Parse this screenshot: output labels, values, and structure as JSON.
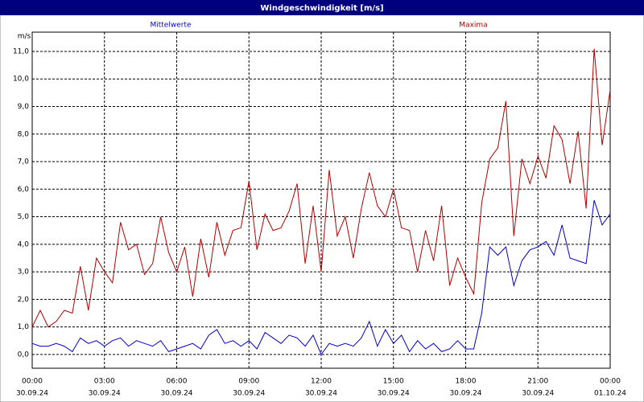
{
  "chart_data": {
    "type": "line",
    "title": "Windgeschwindigkeit [m/s]",
    "y_label": "m/s",
    "x": [
      0,
      20,
      40,
      60,
      80,
      100,
      120,
      140,
      160,
      180,
      200,
      220,
      240,
      260,
      280,
      300,
      320,
      340,
      360,
      380,
      400,
      420,
      440,
      460,
      480,
      500,
      520,
      540,
      560,
      580,
      600,
      620,
      640,
      660,
      680,
      700,
      720,
      740,
      760,
      780,
      800,
      820,
      840,
      860,
      880,
      900,
      920,
      940,
      960,
      980,
      1000,
      1020,
      1040,
      1060,
      1080,
      1100,
      1120,
      1140,
      1160,
      1180,
      1200,
      1220,
      1240,
      1260,
      1280,
      1300,
      1320,
      1340,
      1360,
      1380,
      1400,
      1420,
      1440
    ],
    "series": [
      {
        "name": "Mittelwerte",
        "color": "#0000c8",
        "values": [
          0.4,
          0.3,
          0.3,
          0.4,
          0.3,
          0.1,
          0.6,
          0.4,
          0.5,
          0.3,
          0.5,
          0.6,
          0.3,
          0.5,
          0.4,
          0.3,
          0.5,
          0.1,
          0.2,
          0.3,
          0.4,
          0.2,
          0.7,
          0.9,
          0.4,
          0.5,
          0.3,
          0.5,
          0.2,
          0.8,
          0.6,
          0.4,
          0.7,
          0.6,
          0.3,
          0.7,
          0.0,
          0.4,
          0.3,
          0.4,
          0.3,
          0.6,
          1.2,
          0.3,
          0.9,
          0.4,
          0.7,
          0.1,
          0.5,
          0.2,
          0.4,
          0.1,
          0.2,
          0.5,
          0.2,
          0.2,
          1.5,
          3.9,
          3.6,
          3.9,
          2.5,
          3.4,
          3.8,
          3.9,
          4.1,
          3.6,
          4.7,
          3.5,
          3.4,
          3.3,
          5.6,
          4.7,
          5.1
        ]
      },
      {
        "name": "Maxima",
        "color": "#b40000",
        "values": [
          1.0,
          1.6,
          1.0,
          1.2,
          1.6,
          1.5,
          3.2,
          1.6,
          3.5,
          3.0,
          2.6,
          4.8,
          3.8,
          4.0,
          2.9,
          3.3,
          5.0,
          3.7,
          3.0,
          3.9,
          2.1,
          4.2,
          2.8,
          4.8,
          3.6,
          4.5,
          4.6,
          6.3,
          3.8,
          5.1,
          4.5,
          4.6,
          5.2,
          6.2,
          3.3,
          5.4,
          3.0,
          6.7,
          4.3,
          5.0,
          3.5,
          5.3,
          6.6,
          5.4,
          5.0,
          6.0,
          4.6,
          4.5,
          3.0,
          4.5,
          3.4,
          5.4,
          2.5,
          3.5,
          2.8,
          2.2,
          5.5,
          7.1,
          7.5,
          9.2,
          4.3,
          7.1,
          6.2,
          7.2,
          6.4,
          8.3,
          7.8,
          6.2,
          8.1,
          5.3,
          11.1,
          7.6,
          9.6
        ]
      }
    ],
    "xlim": [
      0,
      1440
    ],
    "xticks": [
      {
        "value": 0,
        "label": "00:00",
        "sublabel": "30.09.24"
      },
      {
        "value": 180,
        "label": "03:00",
        "sublabel": "30.09.24"
      },
      {
        "value": 360,
        "label": "06:00",
        "sublabel": "30.09.24"
      },
      {
        "value": 540,
        "label": "09:00",
        "sublabel": "30.09.24"
      },
      {
        "value": 720,
        "label": "12:00",
        "sublabel": "30.09.24"
      },
      {
        "value": 900,
        "label": "15:00",
        "sublabel": "30.09.24"
      },
      {
        "value": 1080,
        "label": "18:00",
        "sublabel": "30.09.24"
      },
      {
        "value": 1260,
        "label": "21:00",
        "sublabel": "30.09.24"
      },
      {
        "value": 1440,
        "label": "00:00",
        "sublabel": "01.10.24"
      }
    ],
    "ylim": [
      -0.5,
      11.7
    ],
    "yticks": [
      {
        "value": 0,
        "label": "0,0"
      },
      {
        "value": 1,
        "label": "1,0"
      },
      {
        "value": 2,
        "label": "2,0"
      },
      {
        "value": 3,
        "label": "3,0"
      },
      {
        "value": 4,
        "label": "4,0"
      },
      {
        "value": 5,
        "label": "5,0"
      },
      {
        "value": 6,
        "label": "6,0"
      },
      {
        "value": 7,
        "label": "7,0"
      },
      {
        "value": 8,
        "label": "8,0"
      },
      {
        "value": 9,
        "label": "9,0"
      },
      {
        "value": 10,
        "label": "10,0"
      },
      {
        "value": 11,
        "label": "11,0"
      }
    ],
    "grid": true
  }
}
